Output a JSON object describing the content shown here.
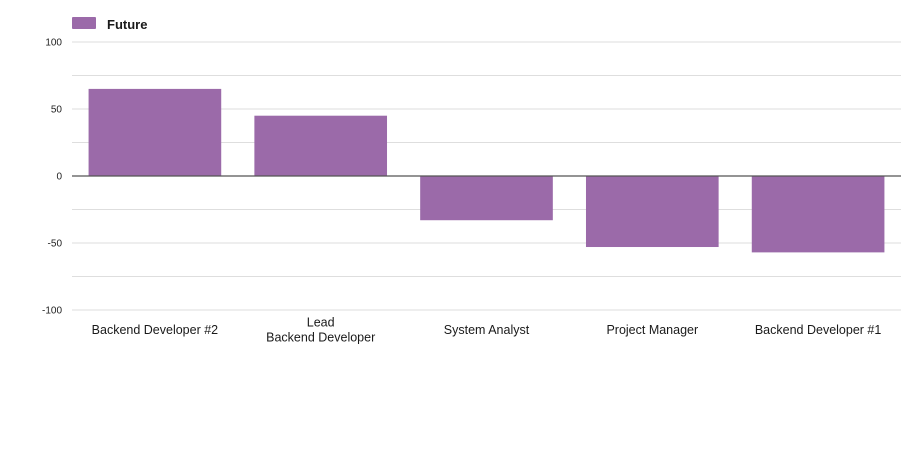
{
  "chart_data": {
    "type": "bar",
    "title": "",
    "xlabel": "",
    "ylabel": "",
    "categories": [
      "Backend Developer #2",
      "Lead\nBackend Developer",
      "System Analyst",
      "Project Manager",
      "Backend Developer #1"
    ],
    "series": [
      {
        "name": "Future",
        "color": "#9b6aa9",
        "values": [
          65,
          45,
          -33,
          -53,
          -57
        ]
      }
    ],
    "ylim": [
      -100,
      100
    ],
    "yticks": [
      100,
      50,
      0,
      -50,
      -100
    ],
    "ytick_labels": [
      "100",
      "50",
      "0",
      "-50",
      "-100"
    ],
    "grid": true,
    "legend_position": "top-left"
  }
}
